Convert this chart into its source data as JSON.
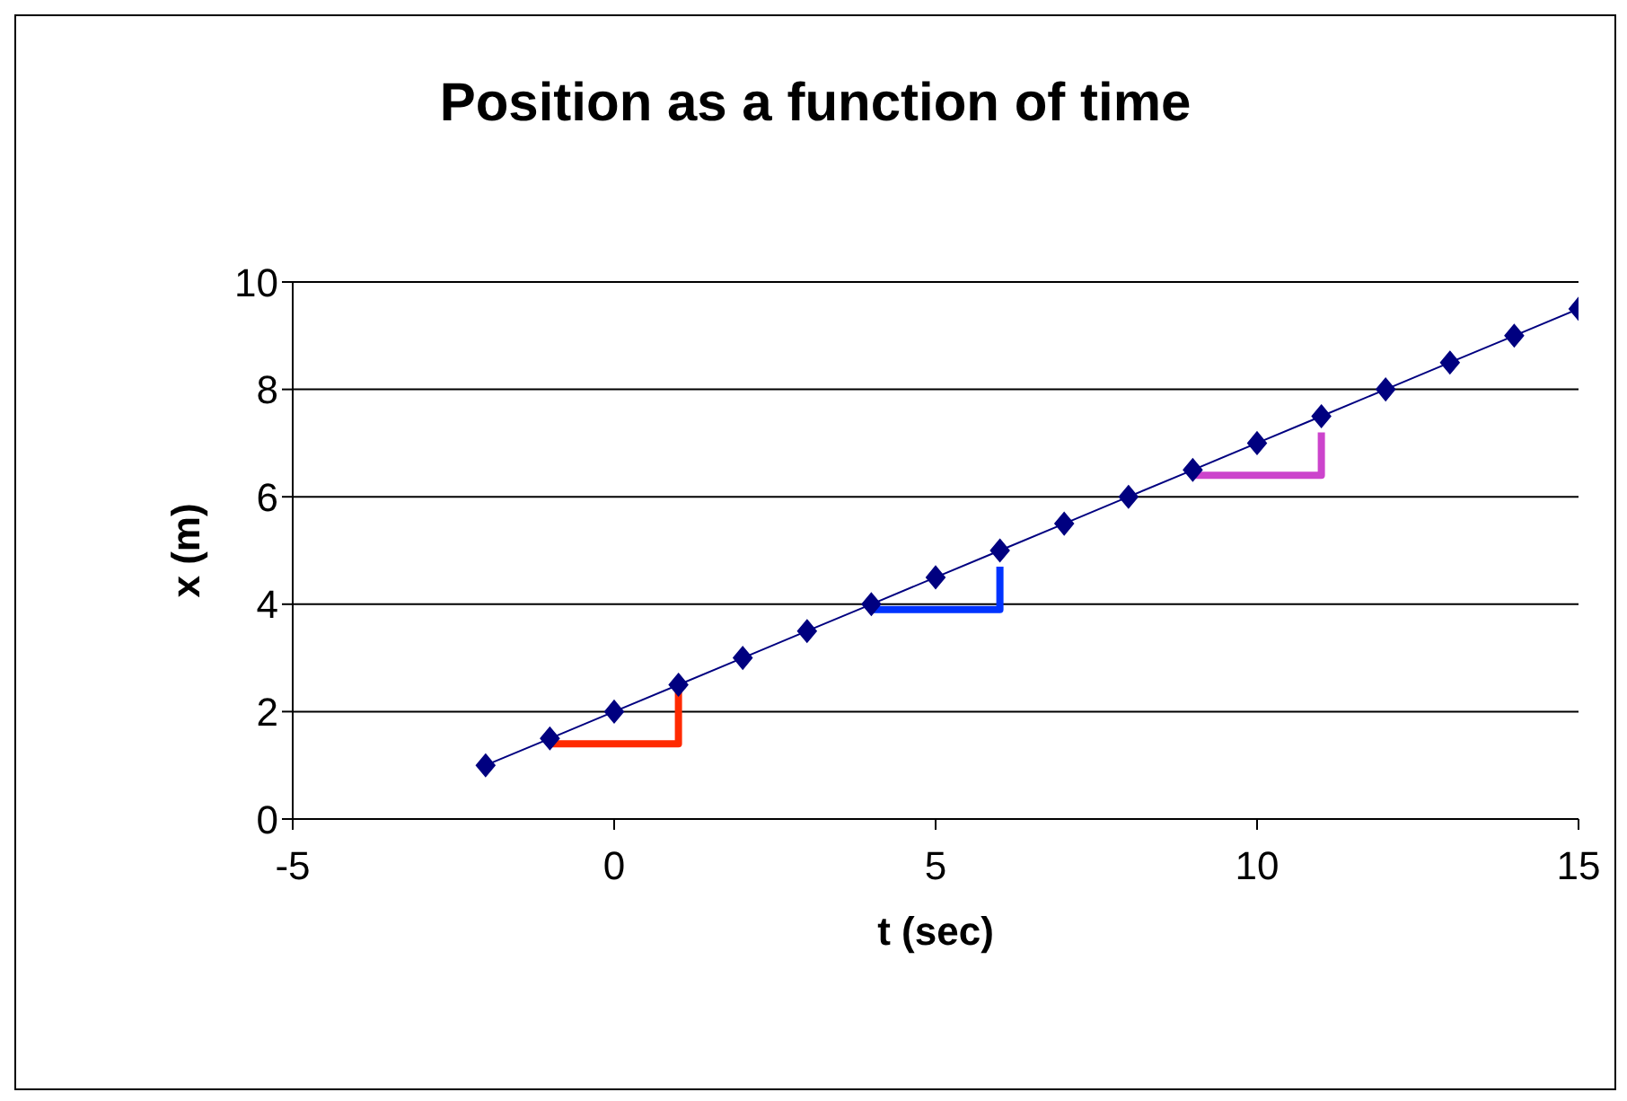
{
  "chart_data": {
    "type": "line",
    "title": "Position as a function of time",
    "xlabel": "t (sec)",
    "ylabel": "x (m)",
    "xlim": [
      -5,
      15
    ],
    "xticks": [
      -5,
      0,
      5,
      10,
      15
    ],
    "ylim": [
      0,
      10
    ],
    "yticks": [
      0,
      2,
      4,
      6,
      8,
      10
    ],
    "grid": "y",
    "series": [
      {
        "color": "#000080",
        "marker": "diamond",
        "x": [
          -2,
          -1,
          0,
          1,
          2,
          3,
          4,
          5,
          6,
          7,
          8,
          9,
          10,
          11,
          12,
          13,
          14,
          15
        ],
        "values": [
          1,
          1.5,
          2,
          2.5,
          3,
          3.5,
          4,
          4.5,
          5,
          5.5,
          6,
          6.5,
          7,
          7.5,
          8,
          8.5,
          9,
          9.5
        ]
      },
      {
        "color": "#ff2a00",
        "marker": "none",
        "x": [
          -1,
          1,
          1
        ],
        "values": [
          1.4,
          1.4,
          2.5
        ]
      },
      {
        "color": "#0033ff",
        "marker": "none",
        "x": [
          4,
          6,
          6
        ],
        "values": [
          3.9,
          3.9,
          4.7
        ]
      },
      {
        "color": "#cc44cc",
        "marker": "none",
        "x": [
          9,
          11,
          11
        ],
        "values": [
          6.4,
          6.4,
          7.2
        ]
      }
    ]
  }
}
